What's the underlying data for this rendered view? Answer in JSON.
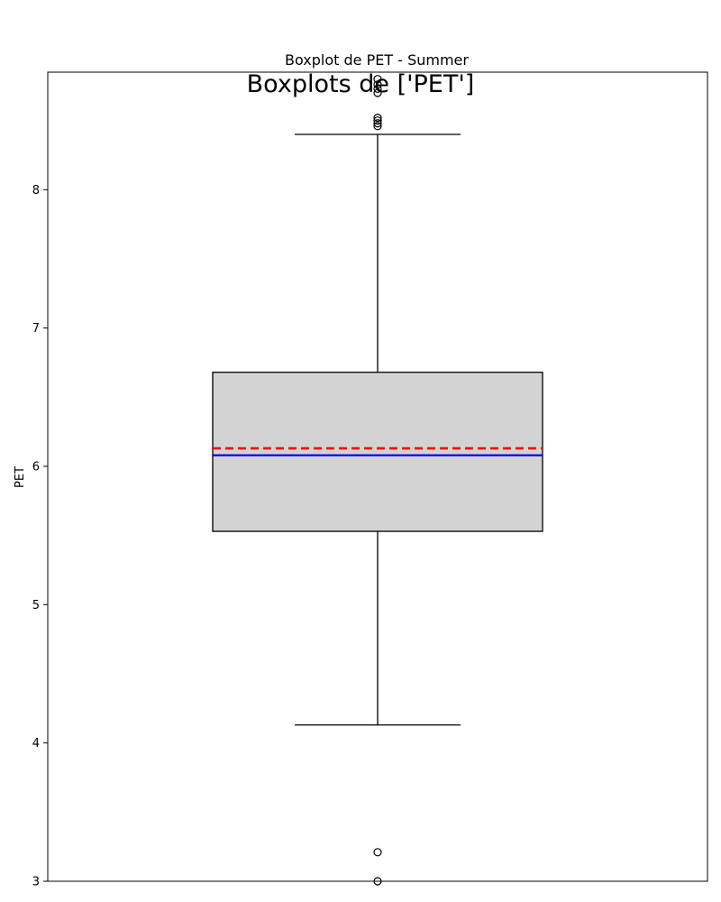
{
  "chart_data": {
    "type": "boxplot",
    "suptitle": "Boxplots de ['PET']",
    "title": "Boxplot de PET - Summer",
    "xlabel": "",
    "ylabel": "PET",
    "ylim": [
      3.0,
      8.85
    ],
    "yticks": [
      3,
      4,
      5,
      6,
      7,
      8
    ],
    "grid": false,
    "legend": false,
    "series": [
      {
        "q1": 5.53,
        "median": 6.08,
        "mean": 6.13,
        "q3": 6.68,
        "whisker_low": 4.13,
        "whisker_high": 8.4,
        "outliers": [
          3.0,
          3.21,
          8.46,
          8.48,
          8.5,
          8.52,
          8.7,
          8.73,
          8.76,
          8.8
        ]
      }
    ],
    "colors": {
      "box_fill": "#d3d3d3",
      "box_edge": "#000000",
      "median": "#0000ff",
      "mean": "#ff0000"
    }
  }
}
